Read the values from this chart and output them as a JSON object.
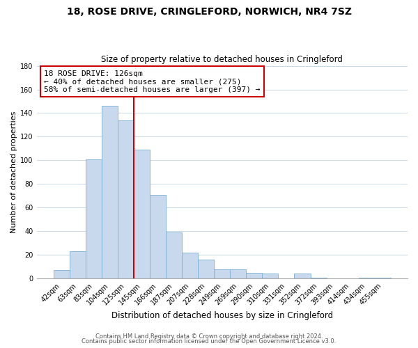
{
  "title": "18, ROSE DRIVE, CRINGLEFORD, NORWICH, NR4 7SZ",
  "subtitle": "Size of property relative to detached houses in Cringleford",
  "xlabel": "Distribution of detached houses by size in Cringleford",
  "ylabel": "Number of detached properties",
  "bar_labels": [
    "42sqm",
    "63sqm",
    "83sqm",
    "104sqm",
    "125sqm",
    "145sqm",
    "166sqm",
    "187sqm",
    "207sqm",
    "228sqm",
    "249sqm",
    "269sqm",
    "290sqm",
    "310sqm",
    "331sqm",
    "352sqm",
    "372sqm",
    "393sqm",
    "414sqm",
    "434sqm",
    "455sqm"
  ],
  "bar_values": [
    7,
    23,
    101,
    146,
    134,
    109,
    71,
    39,
    22,
    16,
    8,
    8,
    5,
    4,
    0,
    4,
    1,
    0,
    0,
    1,
    1
  ],
  "bar_color": "#c8d9ee",
  "bar_edge_color": "#7aafd4",
  "vline_color": "#cc0000",
  "vline_linewidth": 1.5,
  "vline_x": 4.5,
  "annotation_title": "18 ROSE DRIVE: 126sqm",
  "annotation_line1": "← 40% of detached houses are smaller (275)",
  "annotation_line2": "58% of semi-detached houses are larger (397) →",
  "ylim": [
    0,
    180
  ],
  "yticks": [
    0,
    20,
    40,
    60,
    80,
    100,
    120,
    140,
    160,
    180
  ],
  "footer1": "Contains HM Land Registry data © Crown copyright and database right 2024.",
  "footer2": "Contains public sector information licensed under the Open Government Licence v3.0.",
  "title_fontsize": 10,
  "subtitle_fontsize": 8.5,
  "xlabel_fontsize": 8.5,
  "ylabel_fontsize": 8,
  "tick_fontsize": 7,
  "ann_fontsize": 8,
  "footer_fontsize": 6,
  "background_color": "#ffffff",
  "grid_color": "#c8d8e8"
}
